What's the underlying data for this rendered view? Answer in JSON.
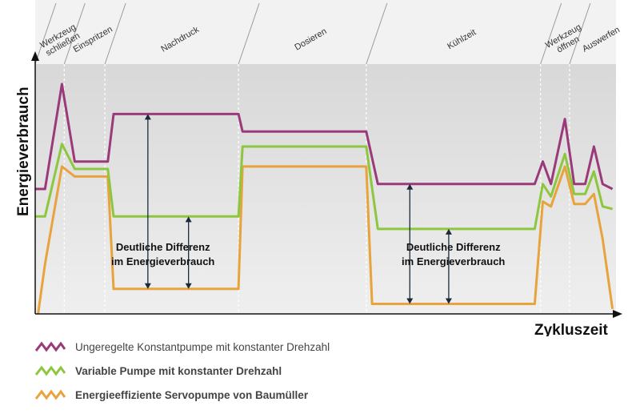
{
  "chart_data": {
    "type": "line",
    "xlabel": "Zykluszeit",
    "ylabel": "Energieverbrauch",
    "grid": false,
    "legend_position": "bottom-left",
    "phases": [
      {
        "label": "Werkzeug schließen",
        "lines": [
          "Werkzeug",
          "schließen"
        ],
        "start": 0,
        "end": 5
      },
      {
        "label": "Einspritzen",
        "lines": [
          "Einspritzen"
        ],
        "start": 5,
        "end": 12
      },
      {
        "label": "Nachdruck",
        "lines": [
          "Nachdruck"
        ],
        "start": 12,
        "end": 35
      },
      {
        "label": "Dosieren",
        "lines": [
          "Dosieren"
        ],
        "start": 35,
        "end": 57
      },
      {
        "label": "Kühlzeit",
        "lines": [
          "Kühlzeit"
        ],
        "start": 57,
        "end": 87
      },
      {
        "label": "Werkzeug öffnen",
        "lines": [
          "Werkzeug",
          "öffnen"
        ],
        "start": 87,
        "end": 92
      },
      {
        "label": "Auswerfen",
        "lines": [
          "Auswerfen"
        ],
        "start": 92,
        "end": 100
      }
    ],
    "xlim": [
      0,
      100
    ],
    "ylim": [
      0,
      100
    ],
    "series": [
      {
        "name": "Ungeregelte Konstantpumpe mit konstanter Drehzahl",
        "color": "#9b3a7a",
        "points": [
          [
            0,
            50
          ],
          [
            1.7,
            50
          ],
          [
            4.6,
            92
          ],
          [
            6.8,
            61
          ],
          [
            12.5,
            61
          ],
          [
            13.5,
            80
          ],
          [
            35,
            80
          ],
          [
            35.7,
            73
          ],
          [
            57,
            73
          ],
          [
            59,
            52
          ],
          [
            86,
            52
          ],
          [
            87.4,
            61
          ],
          [
            88.8,
            52
          ],
          [
            91.2,
            78
          ],
          [
            92.8,
            52
          ],
          [
            94.7,
            52
          ],
          [
            96.2,
            67
          ],
          [
            97.7,
            52
          ],
          [
            99.4,
            50
          ]
        ]
      },
      {
        "name": "Variable Pumpe mit konstanter Drehzahl",
        "color": "#8dc63f",
        "points": [
          [
            0,
            39
          ],
          [
            1.7,
            39
          ],
          [
            4.6,
            68
          ],
          [
            6.8,
            58
          ],
          [
            12.5,
            58
          ],
          [
            13.5,
            39
          ],
          [
            35,
            39
          ],
          [
            35.7,
            67
          ],
          [
            57,
            67
          ],
          [
            59,
            34
          ],
          [
            86,
            34
          ],
          [
            87.4,
            52
          ],
          [
            88.8,
            47
          ],
          [
            91.2,
            64
          ],
          [
            92.8,
            48
          ],
          [
            94.7,
            48
          ],
          [
            96.2,
            57
          ],
          [
            97.7,
            43
          ],
          [
            99.4,
            42
          ]
        ]
      },
      {
        "name": "Energieeffiziente Servopumpe von Baumüller",
        "color": "#e8a33d",
        "points": [
          [
            0.5,
            0
          ],
          [
            1.7,
            20
          ],
          [
            4.6,
            59
          ],
          [
            6.8,
            55
          ],
          [
            12.5,
            55
          ],
          [
            13.5,
            10
          ],
          [
            35,
            10
          ],
          [
            35.7,
            59
          ],
          [
            57,
            59
          ],
          [
            58,
            4
          ],
          [
            86,
            4
          ],
          [
            87.4,
            45
          ],
          [
            88.8,
            43
          ],
          [
            91.2,
            59
          ],
          [
            92.8,
            44
          ],
          [
            94.7,
            44
          ],
          [
            96.2,
            48
          ],
          [
            97.7,
            30
          ],
          [
            99.4,
            2
          ]
        ]
      }
    ],
    "annotations": [
      {
        "lines": [
          "Deutliche Differenz",
          "im Energieverbrauch"
        ],
        "x": 22,
        "arrow_x": [
          19.4,
          26.4
        ],
        "from": 10,
        "to": [
          80,
          39
        ]
      },
      {
        "lines": [
          "Deutliche Differenz",
          "im Energieverbrauch"
        ],
        "x": 72,
        "arrow_x": [
          64.5,
          71.2
        ],
        "from": 4,
        "to": [
          52,
          34
        ]
      }
    ]
  }
}
